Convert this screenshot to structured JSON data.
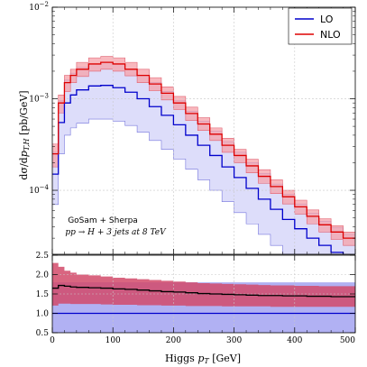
{
  "chart_data": [
    {
      "type": "line",
      "panel": "main",
      "title": "",
      "xlabel": "Higgs $p_T$ [GeV]",
      "xlabel_parts": {
        "prefix": "Higgs ",
        "var": "p",
        "sub": "T",
        "suffix": " [GeV]"
      },
      "ylabel": "dσ/dp_{T,H} [pb/GeV]",
      "ylabel_parts": {
        "prefix": "dσ/d",
        "var": "p",
        "sub": "T,H",
        "suffix": " [pb/GeV]"
      },
      "xlim": [
        0,
        500
      ],
      "ylim": [
        2e-05,
        0.01
      ],
      "yscale": "log",
      "grid": true,
      "legend_position": "top-right",
      "x_ticks": [
        0,
        100,
        200,
        300,
        400,
        500
      ],
      "y_ticks": [
        {
          "value": 0.01,
          "base": "10",
          "exp": "−2"
        },
        {
          "value": 0.001,
          "base": "10",
          "exp": "−3"
        },
        {
          "value": 0.0001,
          "base": "10",
          "exp": "−4"
        }
      ],
      "annotation_lines": [
        "GoSam + Sherpa",
        "pp → H + 3 jets at 8 TeV"
      ],
      "bin_edges": [
        0,
        10,
        20,
        30,
        40,
        60,
        80,
        100,
        120,
        140,
        160,
        180,
        200,
        220,
        240,
        260,
        280,
        300,
        320,
        340,
        360,
        380,
        400,
        420,
        440,
        460,
        480,
        500
      ],
      "series": [
        {
          "name": "LO",
          "color": "#0000cc",
          "band_color": "#b3b3f5",
          "values": [
            0.00015,
            0.00055,
            0.0009,
            0.0011,
            0.00125,
            0.00138,
            0.0014,
            0.00132,
            0.00118,
            0.001,
            0.00082,
            0.00066,
            0.00052,
            0.0004,
            0.00031,
            0.00024,
            0.00018,
            0.000138,
            0.000105,
            8e-05,
            6.2e-05,
            4.8e-05,
            3.8e-05,
            3e-05,
            2.5e-05,
            2.1e-05,
            1.8e-05
          ],
          "band_low": [
            7e-05,
            0.00025,
            0.0004,
            0.00048,
            0.00054,
            0.0006,
            0.0006,
            0.00057,
            0.00051,
            0.00043,
            0.00035,
            0.00028,
            0.00022,
            0.00017,
            0.00013,
            0.0001,
            7.5e-05,
            5.7e-05,
            4.3e-05,
            3.3e-05,
            2.5e-05,
            2e-05,
            1.6e-05,
            1.3e-05,
            1.1e-05,
            1e-05,
            9e-06
          ],
          "band_high": [
            0.00026,
            0.00095,
            0.0016,
            0.0019,
            0.0022,
            0.0024,
            0.0025,
            0.0024,
            0.0021,
            0.0018,
            0.0015,
            0.0012,
            0.00095,
            0.00073,
            0.00057,
            0.00044,
            0.00034,
            0.00026,
            0.0002,
            0.000152,
            0.000117,
            9e-05,
            7.1e-05,
            5.6e-05,
            4.6e-05,
            3.9e-05,
            3.3e-05
          ]
        },
        {
          "name": "NLO",
          "color": "#dd0000",
          "band_color": "#f5a0a8",
          "values": [
            0.00025,
            0.0009,
            0.0015,
            0.0018,
            0.0021,
            0.0024,
            0.0025,
            0.0024,
            0.0021,
            0.0018,
            0.00145,
            0.00115,
            0.0009,
            0.00069,
            0.00053,
            0.00041,
            0.00031,
            0.00024,
            0.000185,
            0.000142,
            0.00011,
            8.5e-05,
            6.6e-05,
            5.2e-05,
            4.2e-05,
            3.5e-05,
            3e-05
          ],
          "band_low": [
            0.00018,
            0.0007,
            0.0012,
            0.0015,
            0.00175,
            0.002,
            0.0021,
            0.002,
            0.00178,
            0.0015,
            0.00122,
            0.00097,
            0.00076,
            0.00058,
            0.00045,
            0.00035,
            0.00026,
            0.0002,
            0.000155,
            0.000119,
            9.2e-05,
            7.1e-05,
            5.5e-05,
            4.3e-05,
            3.5e-05,
            2.9e-05,
            2.5e-05
          ],
          "band_high": [
            0.00032,
            0.0011,
            0.0018,
            0.0021,
            0.0025,
            0.0028,
            0.0029,
            0.0028,
            0.0025,
            0.0021,
            0.0017,
            0.00135,
            0.00106,
            0.00081,
            0.00062,
            0.00048,
            0.00037,
            0.00028,
            0.000218,
            0.000168,
            0.00013,
            0.0001,
            7.8e-05,
            6.1e-05,
            4.9e-05,
            4.1e-05,
            3.5e-05
          ]
        }
      ]
    },
    {
      "type": "line",
      "panel": "ratio",
      "xlabel": "Higgs $p_T$ [GeV]",
      "ylabel": "",
      "xlim": [
        0,
        500
      ],
      "ylim": [
        0.5,
        2.5
      ],
      "y_ticks": [
        "0.5",
        "1.0",
        "1.5",
        "2.0",
        "2.5"
      ],
      "grid": true,
      "lo_band": [
        0.5,
        1.8
      ],
      "bin_edges": [
        0,
        10,
        20,
        30,
        40,
        60,
        80,
        100,
        120,
        140,
        160,
        180,
        200,
        220,
        240,
        260,
        280,
        300,
        320,
        340,
        360,
        380,
        400,
        420,
        440,
        460,
        480,
        500
      ],
      "series": [
        {
          "name": "LO",
          "color": "#0000cc",
          "band_color": "#b3b3f5",
          "values": [
            1.0,
            1.0,
            1.0,
            1.0,
            1.0,
            1.0,
            1.0,
            1.0,
            1.0,
            1.0,
            1.0,
            1.0,
            1.0,
            1.0,
            1.0,
            1.0,
            1.0,
            1.0,
            1.0,
            1.0,
            1.0,
            1.0,
            1.0,
            1.0,
            1.0,
            1.0,
            1.0
          ]
        },
        {
          "name": "NLO",
          "color": "#000000",
          "band_color": "#d24a6a",
          "values": [
            1.65,
            1.72,
            1.7,
            1.68,
            1.67,
            1.66,
            1.65,
            1.63,
            1.62,
            1.6,
            1.58,
            1.56,
            1.55,
            1.53,
            1.51,
            1.5,
            1.49,
            1.48,
            1.47,
            1.46,
            1.46,
            1.45,
            1.45,
            1.44,
            1.44,
            1.43,
            1.43
          ],
          "band_low": [
            1.2,
            1.25,
            1.25,
            1.24,
            1.24,
            1.24,
            1.23,
            1.22,
            1.22,
            1.21,
            1.21,
            1.2,
            1.2,
            1.19,
            1.19,
            1.19,
            1.18,
            1.18,
            1.18,
            1.18,
            1.17,
            1.17,
            1.17,
            1.17,
            1.17,
            1.17,
            1.17
          ],
          "band_high": [
            2.3,
            2.2,
            2.1,
            2.05,
            2.0,
            1.98,
            1.95,
            1.92,
            1.9,
            1.88,
            1.86,
            1.84,
            1.82,
            1.8,
            1.78,
            1.77,
            1.76,
            1.75,
            1.74,
            1.73,
            1.72,
            1.72,
            1.71,
            1.71,
            1.7,
            1.7,
            1.7
          ]
        }
      ]
    }
  ]
}
